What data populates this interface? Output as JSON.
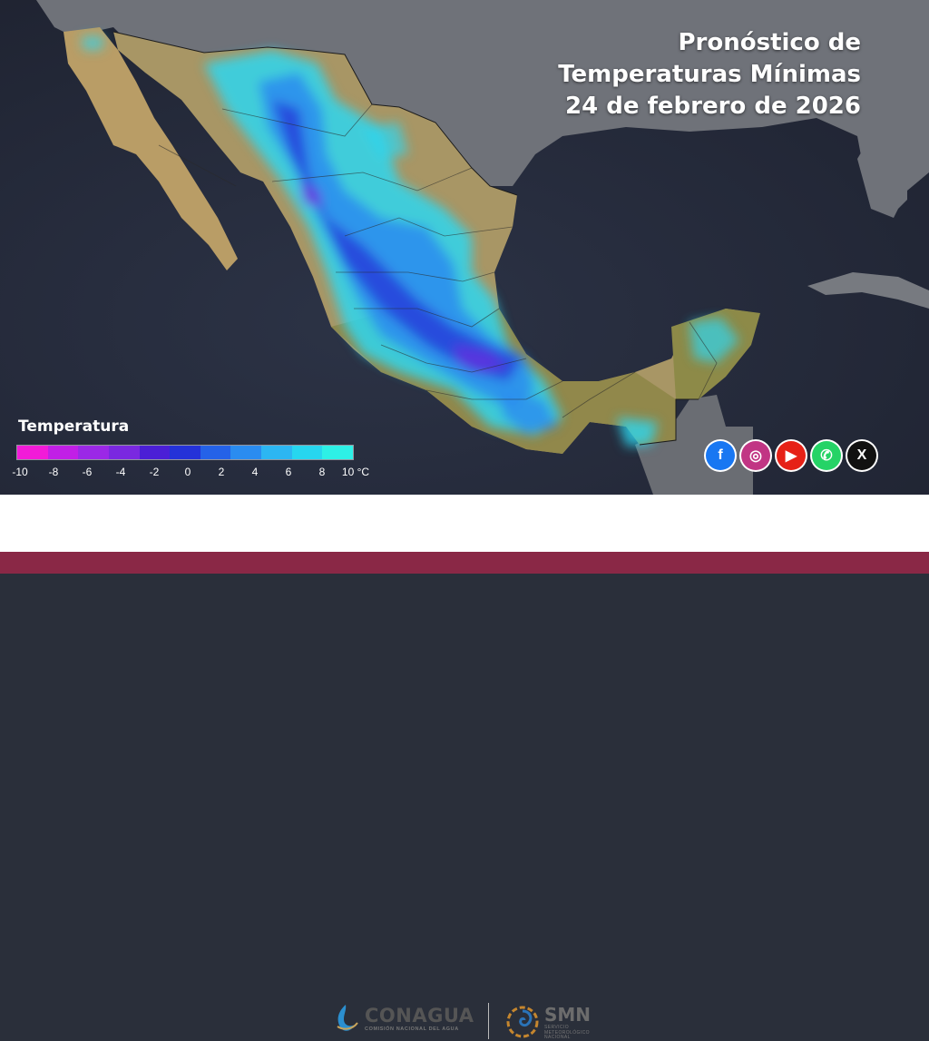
{
  "title": {
    "line1": "Pronóstico de",
    "line2": "Temperaturas Mínimas",
    "line3": "24 de febrero de 2026"
  },
  "legend": {
    "title": "Temperatura",
    "ticks": [
      "-10",
      "-8",
      "-6",
      "-4",
      "-2",
      "0",
      "2",
      "4",
      "6",
      "8",
      "10 °C"
    ],
    "colors": [
      "#f21bd8",
      "#c11fe6",
      "#9b28e6",
      "#7a28e0",
      "#4b1fd6",
      "#2432d8",
      "#2462e8",
      "#2a8cf0",
      "#2cb6f2",
      "#27d6ef",
      "#2ef0e6"
    ]
  },
  "social": [
    {
      "name": "facebook-icon",
      "glyph": "f",
      "color": "#1877f2"
    },
    {
      "name": "instagram-icon",
      "glyph": "◎",
      "color": "#c13584"
    },
    {
      "name": "youtube-icon",
      "glyph": "▶",
      "color": "#e62117"
    },
    {
      "name": "whatsapp-icon",
      "glyph": "✆",
      "color": "#25d366"
    },
    {
      "name": "x-icon",
      "glyph": "X",
      "color": "#111111"
    }
  ],
  "footer": {
    "conagua_name": "CONAGUA",
    "conagua_sub": "COMISIÓN NACIONAL DEL AGUA",
    "smn_name": "SMN",
    "smn_sub1": "SERVICIO",
    "smn_sub2": "METEOROLÓGICO",
    "smn_sub3": "NACIONAL"
  },
  "colors": {
    "ocean": "#2b3142",
    "land_gray": "#6d7078",
    "land_tan": "#b9a06a",
    "land_green": "#8f8c4c",
    "footer_bar": "#8a2846"
  }
}
